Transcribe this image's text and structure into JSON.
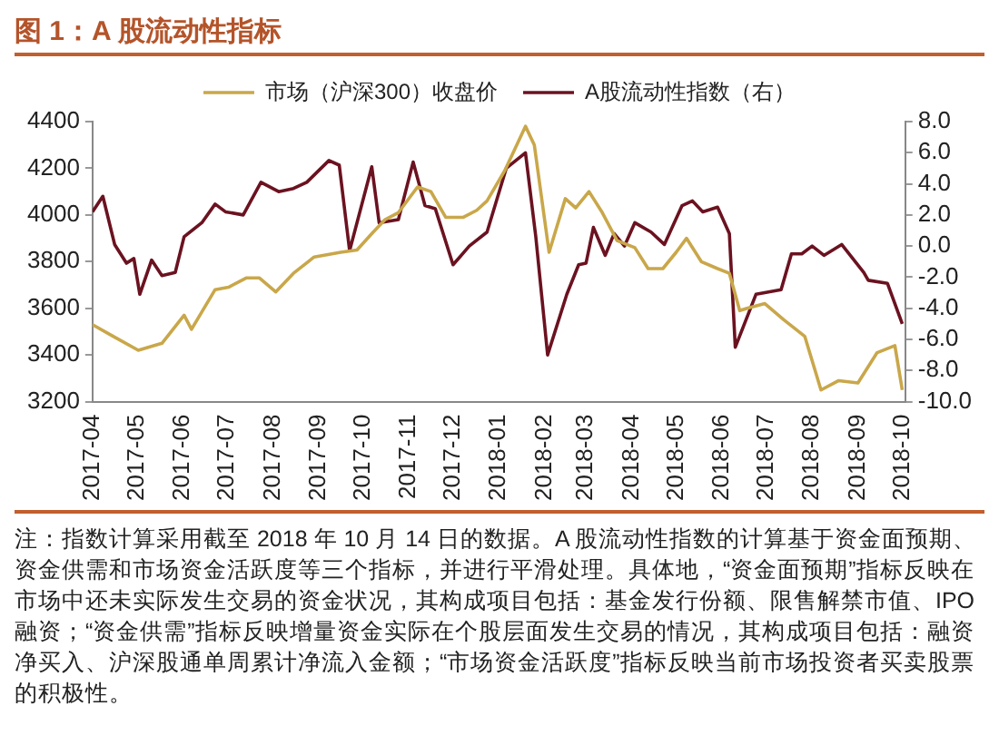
{
  "chart_data": {
    "type": "line",
    "title": "图 1：A 股流动性指标",
    "legend": "top",
    "grid": false,
    "marker": "none",
    "line_style": "solid",
    "xlim": [
      "2017-04-01",
      "2018-10-03"
    ],
    "xticks": [
      "2017-04",
      "2017-05",
      "2017-06",
      "2017-07",
      "2017-08",
      "2017-09",
      "2017-10",
      "2017-11",
      "2017-12",
      "2018-01",
      "2018-02",
      "2018-03",
      "2018-04",
      "2018-05",
      "2018-06",
      "2018-07",
      "2018-08",
      "2018-09",
      "2018-10"
    ],
    "ylim": [
      3200,
      4400
    ],
    "yticks": [
      3200,
      3400,
      3600,
      3800,
      4000,
      4200,
      4400
    ],
    "y2lim": [
      -10,
      8
    ],
    "y2ticks": [
      {
        "value": -10,
        "label": "-10.0"
      },
      {
        "value": -8,
        "label": "-8.0"
      },
      {
        "value": -6,
        "label": "-6.0"
      },
      {
        "value": -4,
        "label": "-4.0"
      },
      {
        "value": -2,
        "label": "-2.0"
      },
      {
        "value": 0,
        "label": "0.0"
      },
      {
        "value": 2,
        "label": "2.0"
      },
      {
        "value": 4,
        "label": "4.0"
      },
      {
        "value": 6,
        "label": "6.0"
      },
      {
        "value": 8,
        "label": "8.0"
      }
    ],
    "series": [
      {
        "name": "市场（沪深300）收盘价",
        "color": "#c9a74a",
        "x": [
          "2017-04-01",
          "2017-04-15",
          "2017-05-02",
          "2017-05-18",
          "2017-06-02",
          "2017-06-07",
          "2017-06-23",
          "2017-07-02",
          "2017-07-14",
          "2017-07-23",
          "2017-08-03",
          "2017-08-15",
          "2017-08-25",
          "2017-08-29",
          "2017-09-16",
          "2017-09-27",
          "2017-10-07",
          "2017-10-16",
          "2017-10-25",
          "2017-11-07",
          "2017-11-16",
          "2017-11-26",
          "2017-12-08",
          "2017-12-17",
          "2017-12-24",
          "2018-01-05",
          "2018-01-19",
          "2018-01-25",
          "2018-02-04",
          "2018-02-15",
          "2018-02-22",
          "2018-03-03",
          "2018-03-12",
          "2018-03-22",
          "2018-04-03",
          "2018-04-12",
          "2018-04-22",
          "2018-05-01",
          "2018-05-08",
          "2018-05-18",
          "2018-05-29",
          "2018-06-06",
          "2018-06-13",
          "2018-06-18",
          "2018-06-30",
          "2018-07-13",
          "2018-07-27",
          "2018-08-07",
          "2018-08-19",
          "2018-09-01",
          "2018-09-14",
          "2018-09-26",
          "2018-10-01"
        ],
        "values": [
          3530,
          3480,
          3420,
          3450,
          3570,
          3510,
          3680,
          3690,
          3730,
          3730,
          3670,
          3750,
          3800,
          3820,
          3840,
          3850,
          3920,
          3980,
          4010,
          4120,
          4100,
          3990,
          3990,
          4020,
          4060,
          4190,
          4380,
          4300,
          3840,
          4070,
          4030,
          4100,
          4010,
          3890,
          3860,
          3770,
          3770,
          3840,
          3900,
          3800,
          3770,
          3750,
          3590,
          3600,
          3620,
          3550,
          3480,
          3250,
          3290,
          3280,
          3410,
          3440,
          3250
        ]
      },
      {
        "name": "A股流动性指数（右）",
        "color": "#6b1220",
        "axis": "y2",
        "x": [
          "2017-04-01",
          "2017-04-08",
          "2017-04-16",
          "2017-04-24",
          "2017-04-29",
          "2017-05-03",
          "2017-05-11",
          "2017-05-18",
          "2017-05-27",
          "2017-06-02",
          "2017-06-14",
          "2017-06-23",
          "2017-06-30",
          "2017-07-12",
          "2017-07-24",
          "2017-08-05",
          "2017-08-15",
          "2017-08-24",
          "2017-09-08",
          "2017-09-15",
          "2017-09-22",
          "2017-10-07",
          "2017-10-12",
          "2017-10-25",
          "2017-11-04",
          "2017-11-12",
          "2017-11-19",
          "2017-12-01",
          "2017-12-12",
          "2017-12-24",
          "2018-01-06",
          "2018-01-19",
          "2018-01-26",
          "2018-01-30",
          "2018-02-03",
          "2018-02-16",
          "2018-02-24",
          "2018-03-01",
          "2018-03-06",
          "2018-03-14",
          "2018-03-20",
          "2018-03-27",
          "2018-04-03",
          "2018-04-14",
          "2018-04-23",
          "2018-05-05",
          "2018-05-12",
          "2018-05-19",
          "2018-05-29",
          "2018-06-06",
          "2018-06-10",
          "2018-06-24",
          "2018-07-11",
          "2018-07-18",
          "2018-07-25",
          "2018-08-01",
          "2018-08-09",
          "2018-08-21",
          "2018-09-05",
          "2018-09-08",
          "2018-09-21",
          "2018-10-01"
        ],
        "values": [
          2.2,
          3.2,
          0.1,
          -1.1,
          -0.8,
          -3.1,
          -0.9,
          -1.9,
          -1.7,
          0.6,
          1.5,
          2.7,
          2.2,
          2.0,
          4.1,
          3.5,
          3.7,
          4.1,
          5.5,
          5.2,
          -0.3,
          5.1,
          1.5,
          1.7,
          5.4,
          2.6,
          2.4,
          -1.2,
          0.0,
          0.9,
          5.0,
          6.0,
          0.6,
          -3.2,
          -7.0,
          -3.1,
          -1.2,
          -1.1,
          1.2,
          -0.6,
          0.8,
          0.0,
          1.5,
          0.9,
          0.1,
          2.6,
          2.9,
          2.2,
          2.5,
          0.8,
          -6.5,
          -3.1,
          -2.8,
          -0.5,
          -0.5,
          0.0,
          -0.6,
          0.1,
          -1.7,
          -2.2,
          -2.4,
          -5.0
        ]
      }
    ],
    "annotations": [
      "注：指数计算采用截至 2018 年 10 月 14 日的数据。A 股流动性指数的计算基于资金面预期、资金供需和市场资金活跃度等三个指标，并进行平滑处理。具体地，“资金面预期”指标反映在市场中还未实际发生交易的资金状况，其构成项目包括：基金发行份额、限售解禁市值、IPO 融资；“资金供需”指标反映增量资金实际在个股层面发生交易的情况，其构成项目包括：融资净买入、沪深股通单周累计净流入金额；“市场资金活跃度”指标反映当前市场投资者买卖股票的积极性。"
    ]
  }
}
